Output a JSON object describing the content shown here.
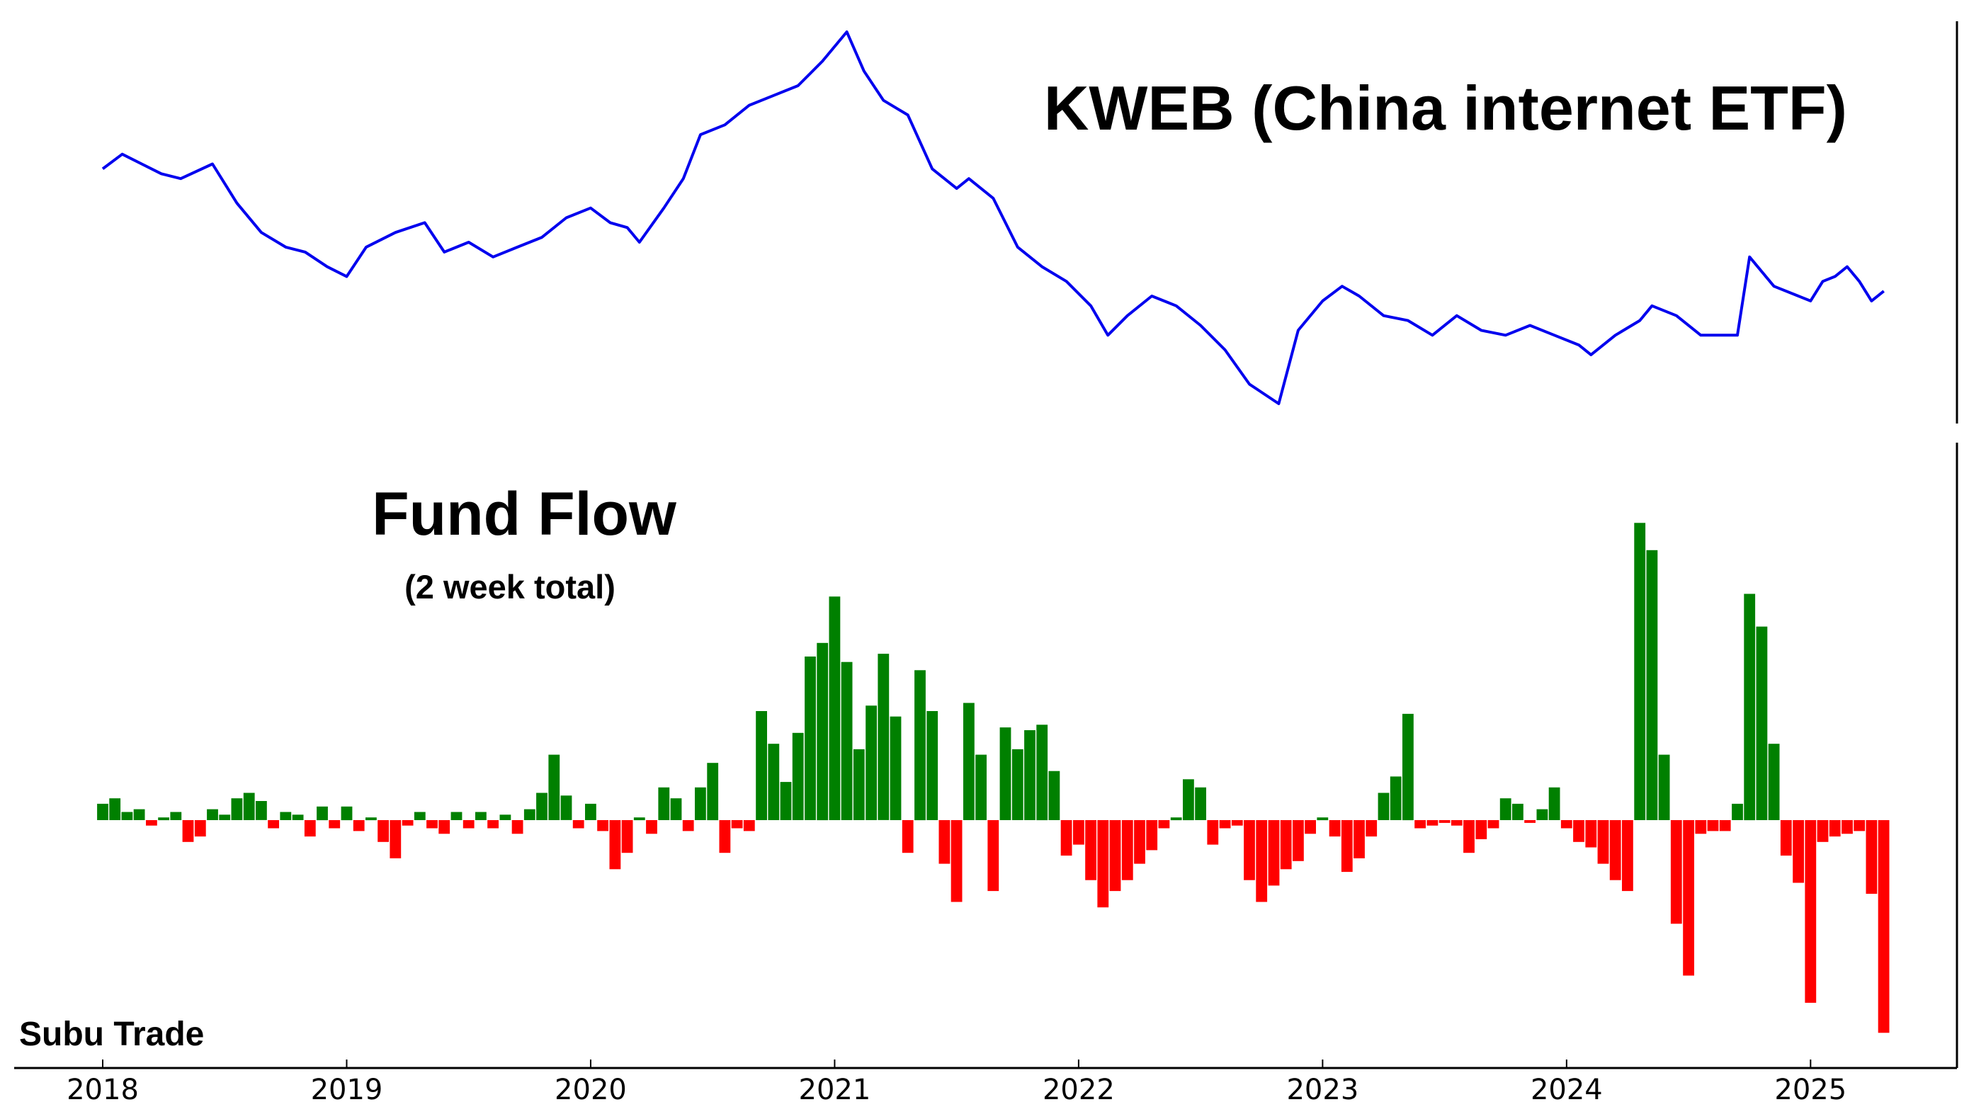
{
  "chart_data": [
    {
      "type": "line",
      "title": "KWEB (China internet ETF)",
      "series": [
        {
          "color": "#0000ee",
          "x": [
            2018.0,
            2018.08,
            2018.16,
            2018.24,
            2018.32,
            2018.45,
            2018.55,
            2018.65,
            2018.75,
            2018.83,
            2018.92,
            2019.0,
            2019.08,
            2019.2,
            2019.32,
            2019.4,
            2019.5,
            2019.6,
            2019.7,
            2019.8,
            2019.9,
            2020.0,
            2020.08,
            2020.15,
            2020.2,
            2020.3,
            2020.38,
            2020.45,
            2020.55,
            2020.65,
            2020.75,
            2020.85,
            2020.95,
            2021.05,
            2021.12,
            2021.2,
            2021.3,
            2021.4,
            2021.5,
            2021.55,
            2021.65,
            2021.75,
            2021.85,
            2021.95,
            2022.05,
            2022.12,
            2022.2,
            2022.3,
            2022.4,
            2022.5,
            2022.6,
            2022.7,
            2022.82,
            2022.9,
            2023.0,
            2023.08,
            2023.15,
            2023.25,
            2023.35,
            2023.45,
            2023.55,
            2023.65,
            2023.75,
            2023.85,
            2023.95,
            2024.05,
            2024.1,
            2024.2,
            2024.3,
            2024.35,
            2024.45,
            2024.55,
            2024.65,
            2024.7,
            2024.75,
            2024.85,
            2024.95,
            2025.0,
            2025.05,
            2025.1,
            2025.15,
            2025.2,
            2025.25,
            2025.3
          ],
          "values": [
            58,
            61,
            59,
            57,
            56,
            59,
            51,
            45,
            42,
            41,
            38,
            36,
            42,
            45,
            47,
            41,
            43,
            40,
            42,
            44,
            48,
            50,
            47,
            46,
            43,
            50,
            56,
            65,
            67,
            71,
            73,
            75,
            80,
            86,
            78,
            72,
            69,
            58,
            54,
            56,
            52,
            42,
            38,
            35,
            30,
            24,
            28,
            32,
            30,
            26,
            21,
            14,
            10,
            25,
            31,
            34,
            32,
            28,
            27,
            24,
            28,
            25,
            24,
            26,
            24,
            22,
            20,
            24,
            27,
            30,
            28,
            24,
            24,
            24,
            40,
            34,
            32,
            31,
            35,
            36,
            38,
            35,
            31,
            33
          ]
        }
      ]
    },
    {
      "type": "bar",
      "title": "Fund Flow",
      "subtitle": "(2 week total)",
      "positive_color": "#008000",
      "negative_color": "#ff0000",
      "x": [
        2018.0,
        2018.05,
        2018.1,
        2018.15,
        2018.2,
        2018.25,
        2018.3,
        2018.35,
        2018.4,
        2018.45,
        2018.5,
        2018.55,
        2018.6,
        2018.65,
        2018.7,
        2018.75,
        2018.8,
        2018.85,
        2018.9,
        2018.95,
        2019.0,
        2019.05,
        2019.1,
        2019.15,
        2019.2,
        2019.25,
        2019.3,
        2019.35,
        2019.4,
        2019.45,
        2019.5,
        2019.55,
        2019.6,
        2019.65,
        2019.7,
        2019.75,
        2019.8,
        2019.85,
        2019.9,
        2019.95,
        2020.0,
        2020.05,
        2020.1,
        2020.15,
        2020.2,
        2020.25,
        2020.3,
        2020.35,
        2020.4,
        2020.45,
        2020.5,
        2020.55,
        2020.6,
        2020.65,
        2020.7,
        2020.75,
        2020.8,
        2020.85,
        2020.9,
        2020.95,
        2021.0,
        2021.05,
        2021.1,
        2021.15,
        2021.2,
        2021.25,
        2021.3,
        2021.35,
        2021.4,
        2021.45,
        2021.5,
        2021.55,
        2021.6,
        2021.65,
        2021.7,
        2021.75,
        2021.8,
        2021.85,
        2021.9,
        2021.95,
        2022.0,
        2022.05,
        2022.1,
        2022.15,
        2022.2,
        2022.25,
        2022.3,
        2022.35,
        2022.4,
        2022.45,
        2022.5,
        2022.55,
        2022.6,
        2022.65,
        2022.7,
        2022.75,
        2022.8,
        2022.85,
        2022.9,
        2022.95,
        2023.0,
        2023.05,
        2023.1,
        2023.15,
        2023.2,
        2023.25,
        2023.3,
        2023.35,
        2023.4,
        2023.45,
        2023.5,
        2023.55,
        2023.6,
        2023.65,
        2023.7,
        2023.75,
        2023.8,
        2023.85,
        2023.9,
        2023.95,
        2024.0,
        2024.05,
        2024.1,
        2024.15,
        2024.2,
        2024.25,
        2024.3,
        2024.35,
        2024.4,
        2024.45,
        2024.5,
        2024.55,
        2024.6,
        2024.65,
        2024.7,
        2024.75,
        2024.8,
        2024.85,
        2024.9,
        2024.95,
        2025.0,
        2025.05,
        2025.1,
        2025.15,
        2025.2,
        2025.25,
        2025.3
      ],
      "values": [
        0.6,
        0.8,
        0.3,
        0.4,
        -0.2,
        0.1,
        0.3,
        -0.8,
        -0.6,
        0.4,
        0.2,
        0.8,
        1.0,
        0.7,
        -0.3,
        0.3,
        0.2,
        -0.6,
        0.5,
        -0.3,
        0.5,
        -0.4,
        0.1,
        -0.8,
        -1.4,
        -0.2,
        0.3,
        -0.3,
        -0.5,
        0.3,
        -0.3,
        0.3,
        -0.3,
        0.2,
        -0.5,
        0.4,
        1.0,
        2.4,
        0.9,
        -0.3,
        0.6,
        -0.4,
        -1.8,
        -1.2,
        0.1,
        -0.5,
        1.2,
        0.8,
        -0.4,
        1.2,
        2.1,
        -1.2,
        -0.3,
        -0.4,
        4.0,
        2.8,
        1.4,
        3.2,
        6.0,
        6.5,
        8.2,
        5.8,
        2.6,
        4.2,
        6.1,
        3.8,
        -1.2,
        5.5,
        4.0,
        -1.6,
        -3.0,
        4.3,
        2.4,
        -2.6,
        3.4,
        2.6,
        3.3,
        3.5,
        1.8,
        -1.3,
        -0.9,
        -2.2,
        -3.2,
        -2.6,
        -2.2,
        -1.6,
        -1.1,
        -0.3,
        0.1,
        1.5,
        1.2,
        -0.9,
        -0.3,
        -0.2,
        -2.2,
        -3.0,
        -2.4,
        -1.8,
        -1.5,
        -0.5,
        0.1,
        -0.6,
        -1.9,
        -1.4,
        -0.6,
        1.0,
        1.6,
        3.9,
        -0.3,
        -0.2,
        -0.1,
        -0.2,
        -1.2,
        -0.7,
        -0.3,
        0.8,
        0.6,
        -0.1,
        0.4,
        1.2,
        -0.3,
        -0.8,
        -1.0,
        -1.6,
        -2.2,
        -2.6,
        10.9,
        9.9,
        2.4,
        -3.8,
        -5.7,
        -0.5,
        -0.4,
        -0.4,
        0.6,
        8.3,
        7.1,
        2.8,
        -1.3,
        -2.3,
        -6.7,
        -0.8,
        -0.6,
        -0.5,
        -0.4,
        -2.7,
        -7.8
      ]
    }
  ],
  "axis": {
    "xmin": 2018.0,
    "xmax": 2025.6,
    "x_ticks": [
      2018,
      2019,
      2020,
      2021,
      2022,
      2023,
      2024,
      2025
    ],
    "x_tick_labels": [
      "2018",
      "2019",
      "2020",
      "2021",
      "2022",
      "2023",
      "2024",
      "2025"
    ],
    "grid": false
  },
  "watermark": "Subu Trade"
}
